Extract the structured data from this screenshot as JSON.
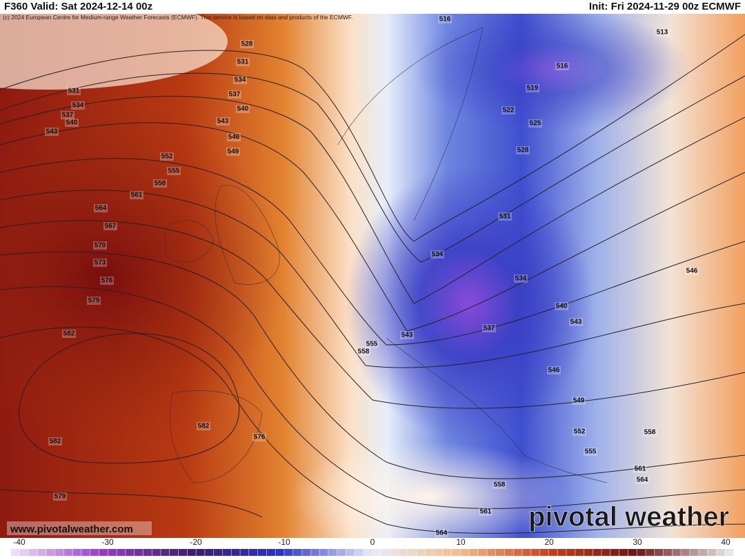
{
  "header": {
    "valid": "F360 Valid: Sat 2024-12-14 00z",
    "init": "Init: Fri 2024-11-29 00z ECMWF"
  },
  "copyright": "(c) 2024 European Centre for Medium-range Weather Forecasts (ECMWF). This service is based on data and products of the ECMWF.",
  "contour_labels": [
    516,
    513,
    528,
    531,
    516,
    534,
    519,
    531,
    537,
    534,
    540,
    522,
    537,
    540,
    543,
    525,
    543,
    546,
    549,
    528,
    552,
    555,
    558,
    561,
    564,
    531,
    567,
    570,
    534,
    573,
    546,
    534,
    576,
    579,
    540,
    543,
    537,
    582,
    543,
    555,
    558,
    546,
    549,
    582,
    576,
    558,
    552,
    582,
    555,
    561,
    564,
    558,
    579,
    561,
    564
  ],
  "footer": {
    "website": "www.pivotalweather.com",
    "logo": "pivotal weather"
  },
  "colorbar": {
    "ticks": [
      -40,
      -30,
      -20,
      -10,
      0,
      10,
      20,
      30,
      40
    ]
  }
}
